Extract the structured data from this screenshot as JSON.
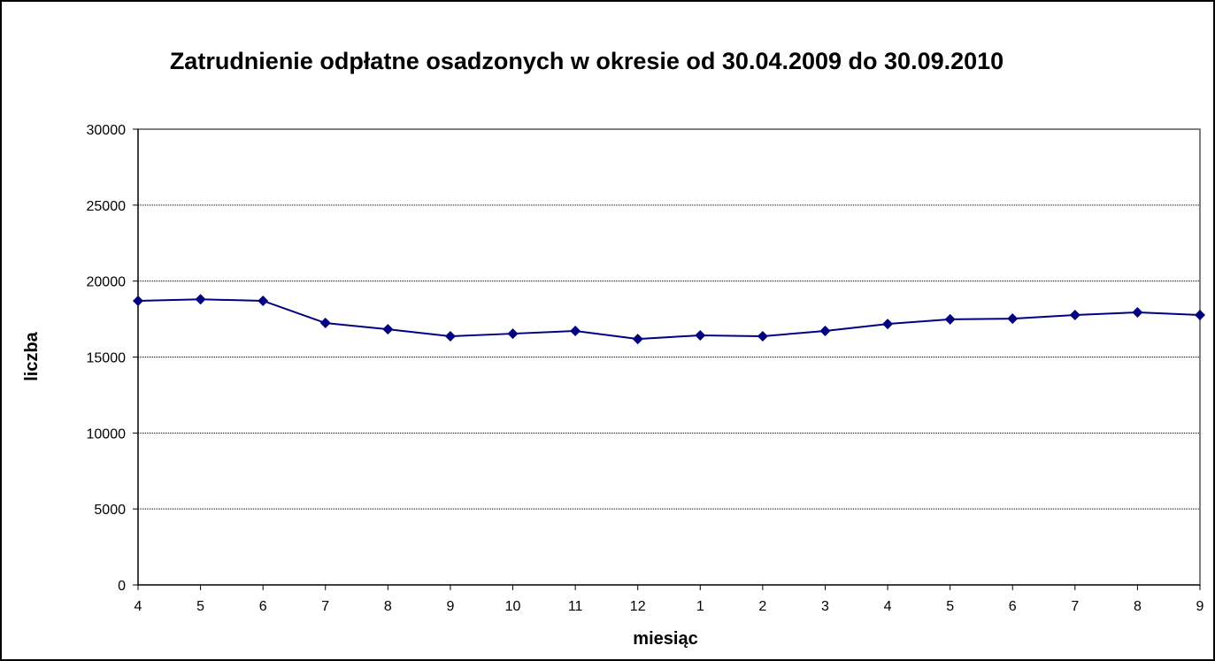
{
  "chart_data": {
    "type": "line",
    "title": "Zatrudnienie odpłatne osadzonych w okresie od 30.04.2009 do 30.09.2010",
    "xlabel": "miesiąc",
    "ylabel": "liczba",
    "categories": [
      "4",
      "5",
      "6",
      "7",
      "8",
      "9",
      "10",
      "11",
      "12",
      "1",
      "2",
      "3",
      "4",
      "5",
      "6",
      "7",
      "8",
      "9"
    ],
    "series": [
      {
        "name": "liczba",
        "color": "#000080",
        "values": [
          18700,
          18800,
          18700,
          17240,
          16830,
          16370,
          16540,
          16720,
          16190,
          16430,
          16370,
          16720,
          17180,
          17480,
          17530,
          17770,
          17940,
          17770
        ]
      }
    ],
    "ylim": [
      0,
      30000
    ],
    "yticks": [
      0,
      5000,
      10000,
      15000,
      20000,
      25000,
      30000
    ],
    "grid": true
  }
}
